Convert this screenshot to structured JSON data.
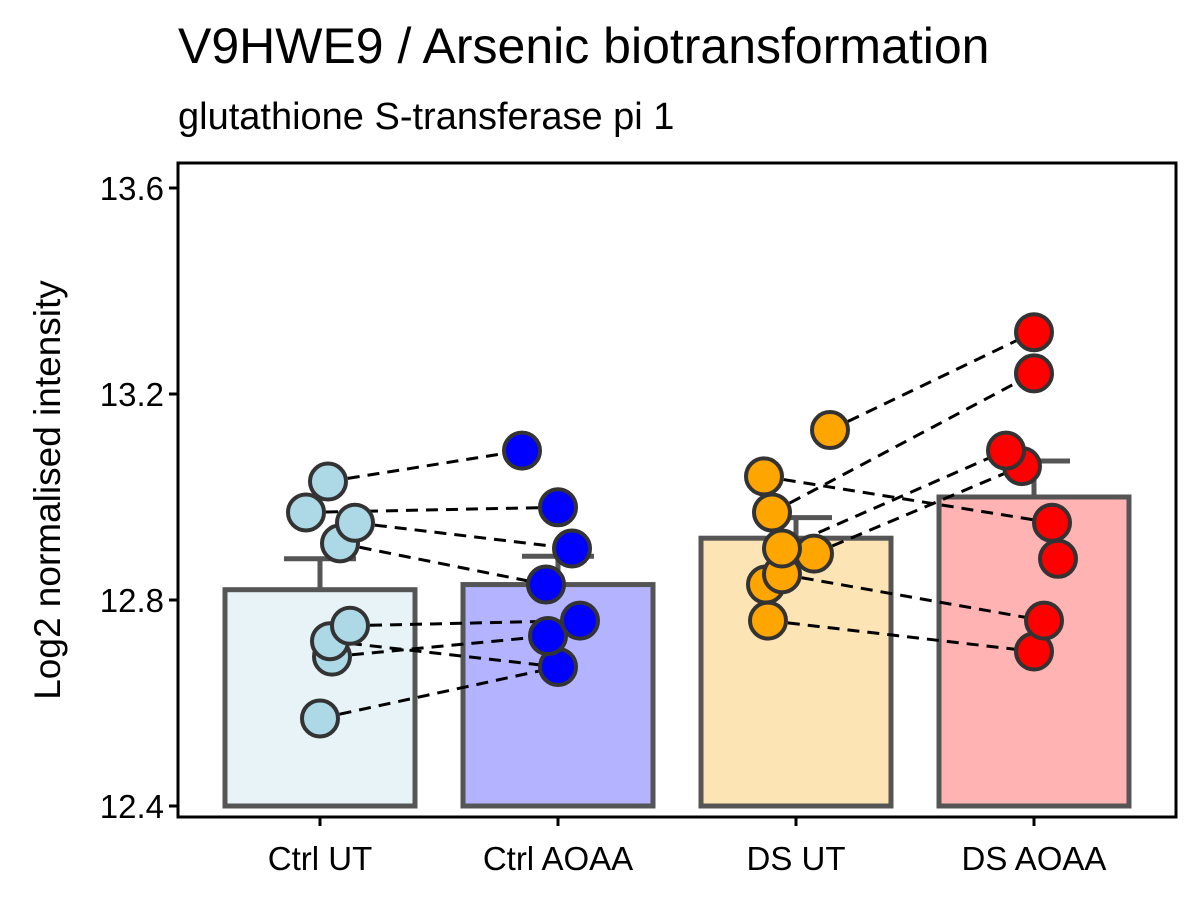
{
  "chart_data": {
    "type": "bar",
    "title": "V9HWE9 / Arsenic biotransformation",
    "subtitle": "glutathione S-transferase pi 1",
    "xlabel": "",
    "ylabel": "Log2 normalised intensity",
    "ylim": [
      12.4,
      13.65
    ],
    "yticks": [
      "12.4",
      "12.8",
      "13.2",
      "13.6"
    ],
    "ytick_values": [
      12.4,
      12.8,
      13.2,
      13.6
    ],
    "grid": false,
    "categories": [
      "Ctrl UT",
      "Ctrl AOAA",
      "DS UT",
      "DS AOAA"
    ],
    "values": [
      12.82,
      12.83,
      12.92,
      13.0
    ],
    "error_upper": [
      12.88,
      12.885,
      12.96,
      13.07
    ],
    "bar_fill": [
      "#e8f3f8",
      "#b3b3ff",
      "#fde4b5",
      "#ffb3b3"
    ],
    "point_color": [
      "#add8e6",
      "#0000ff",
      "#ffa500",
      "#ff0000"
    ],
    "points": [
      [
        12.57,
        12.69,
        12.72,
        12.75,
        12.91,
        12.95,
        12.97,
        13.03
      ],
      [
        12.67,
        12.73,
        12.76,
        12.83,
        12.9,
        12.98,
        13.09
      ],
      [
        12.76,
        12.83,
        12.85,
        12.89,
        12.9,
        12.97,
        13.04,
        13.13
      ],
      [
        12.7,
        12.76,
        12.88,
        12.95,
        13.06,
        13.09,
        13.24,
        13.32
      ]
    ],
    "pairs": [
      [
        [
          12.57,
          12.67
        ],
        [
          12.69,
          12.73
        ],
        [
          12.72,
          12.67
        ],
        [
          12.75,
          12.76
        ],
        [
          12.91,
          12.83
        ],
        [
          12.95,
          12.9
        ],
        [
          12.97,
          12.98
        ],
        [
          13.03,
          13.09
        ]
      ],
      [
        [
          12.76,
          12.7
        ],
        [
          12.85,
          12.76
        ],
        [
          12.89,
          13.06
        ],
        [
          12.9,
          13.09
        ],
        [
          13.04,
          12.95
        ],
        [
          12.97,
          13.24
        ],
        [
          13.13,
          13.32
        ]
      ]
    ]
  }
}
